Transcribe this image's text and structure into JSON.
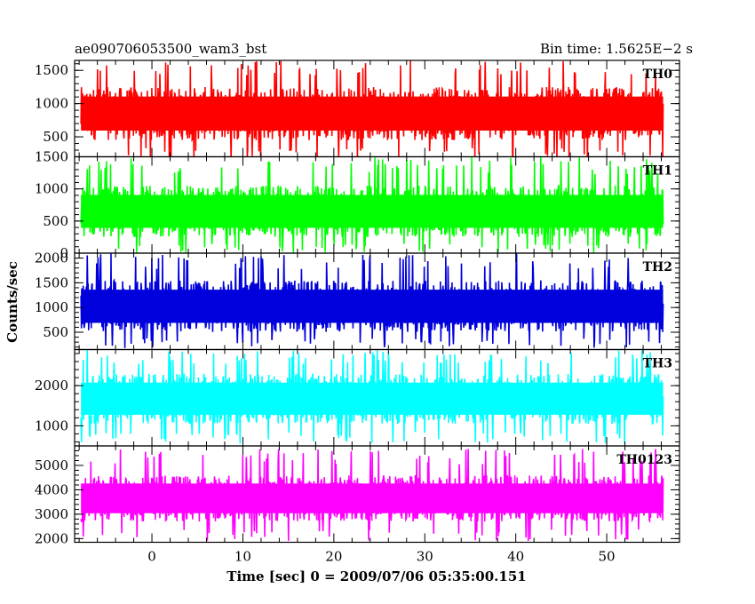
{
  "chart_data": {
    "type": "line",
    "title_left": "ae090706053500_wam3_bst",
    "title_right": "Bin time: 1.5625E−2 s",
    "xlabel": "Time [sec] 0 = 2009/07/06 05:35:00.151",
    "ylabel": "Counts/sec",
    "xlim": [
      -8.5,
      58
    ],
    "x_ticks": [
      0,
      10,
      20,
      30,
      40,
      50
    ],
    "x_tick_labels": [
      "0",
      "10",
      "20",
      "30",
      "40",
      "50"
    ],
    "x_data_range": [
      -7.8,
      56.2
    ],
    "grid": false,
    "panels": [
      {
        "name": "TH0",
        "color": "#ff0000",
        "ylim": [
          200,
          1650
        ],
        "y_ticks": [
          500,
          1000,
          1500
        ],
        "y_tick_labels": [
          "500",
          "1000",
          "1500"
        ],
        "mean": 820,
        "band_low": 450,
        "band_high": 1250,
        "spike_min": 150,
        "spike_max": 1650
      },
      {
        "name": "TH1",
        "color": "#00ff00",
        "ylim": [
          0,
          1500
        ],
        "y_ticks": [
          0,
          500,
          1000,
          1500
        ],
        "y_tick_labels": [
          "0",
          "500",
          "1000",
          "1500"
        ],
        "mean": 650,
        "band_low": 250,
        "band_high": 1050,
        "spike_min": 0,
        "spike_max": 1500
      },
      {
        "name": "TH2",
        "color": "#0000dd",
        "ylim": [
          150,
          2100
        ],
        "y_ticks": [
          500,
          1000,
          1500,
          2000
        ],
        "y_tick_labels": [
          "500",
          "1000",
          "1500",
          "2000"
        ],
        "mean": 1000,
        "band_low": 500,
        "band_high": 1550,
        "spike_min": 180,
        "spike_max": 2100
      },
      {
        "name": "TH3",
        "color": "#00ffff",
        "ylim": [
          500,
          2900
        ],
        "y_ticks": [
          1000,
          2000
        ],
        "y_tick_labels": [
          "1000",
          "2000"
        ],
        "mean": 1650,
        "band_low": 1050,
        "band_high": 2300,
        "spike_min": 550,
        "spike_max": 2900
      },
      {
        "name": "TH0123",
        "color": "#ff00ff",
        "ylim": [
          1850,
          5800
        ],
        "y_ticks": [
          2000,
          3000,
          4000,
          5000
        ],
        "y_tick_labels": [
          "2000",
          "3000",
          "4000",
          "5000"
        ],
        "mean": 3650,
        "band_low": 2700,
        "band_high": 4600,
        "spike_min": 1900,
        "spike_max": 5700
      }
    ]
  }
}
